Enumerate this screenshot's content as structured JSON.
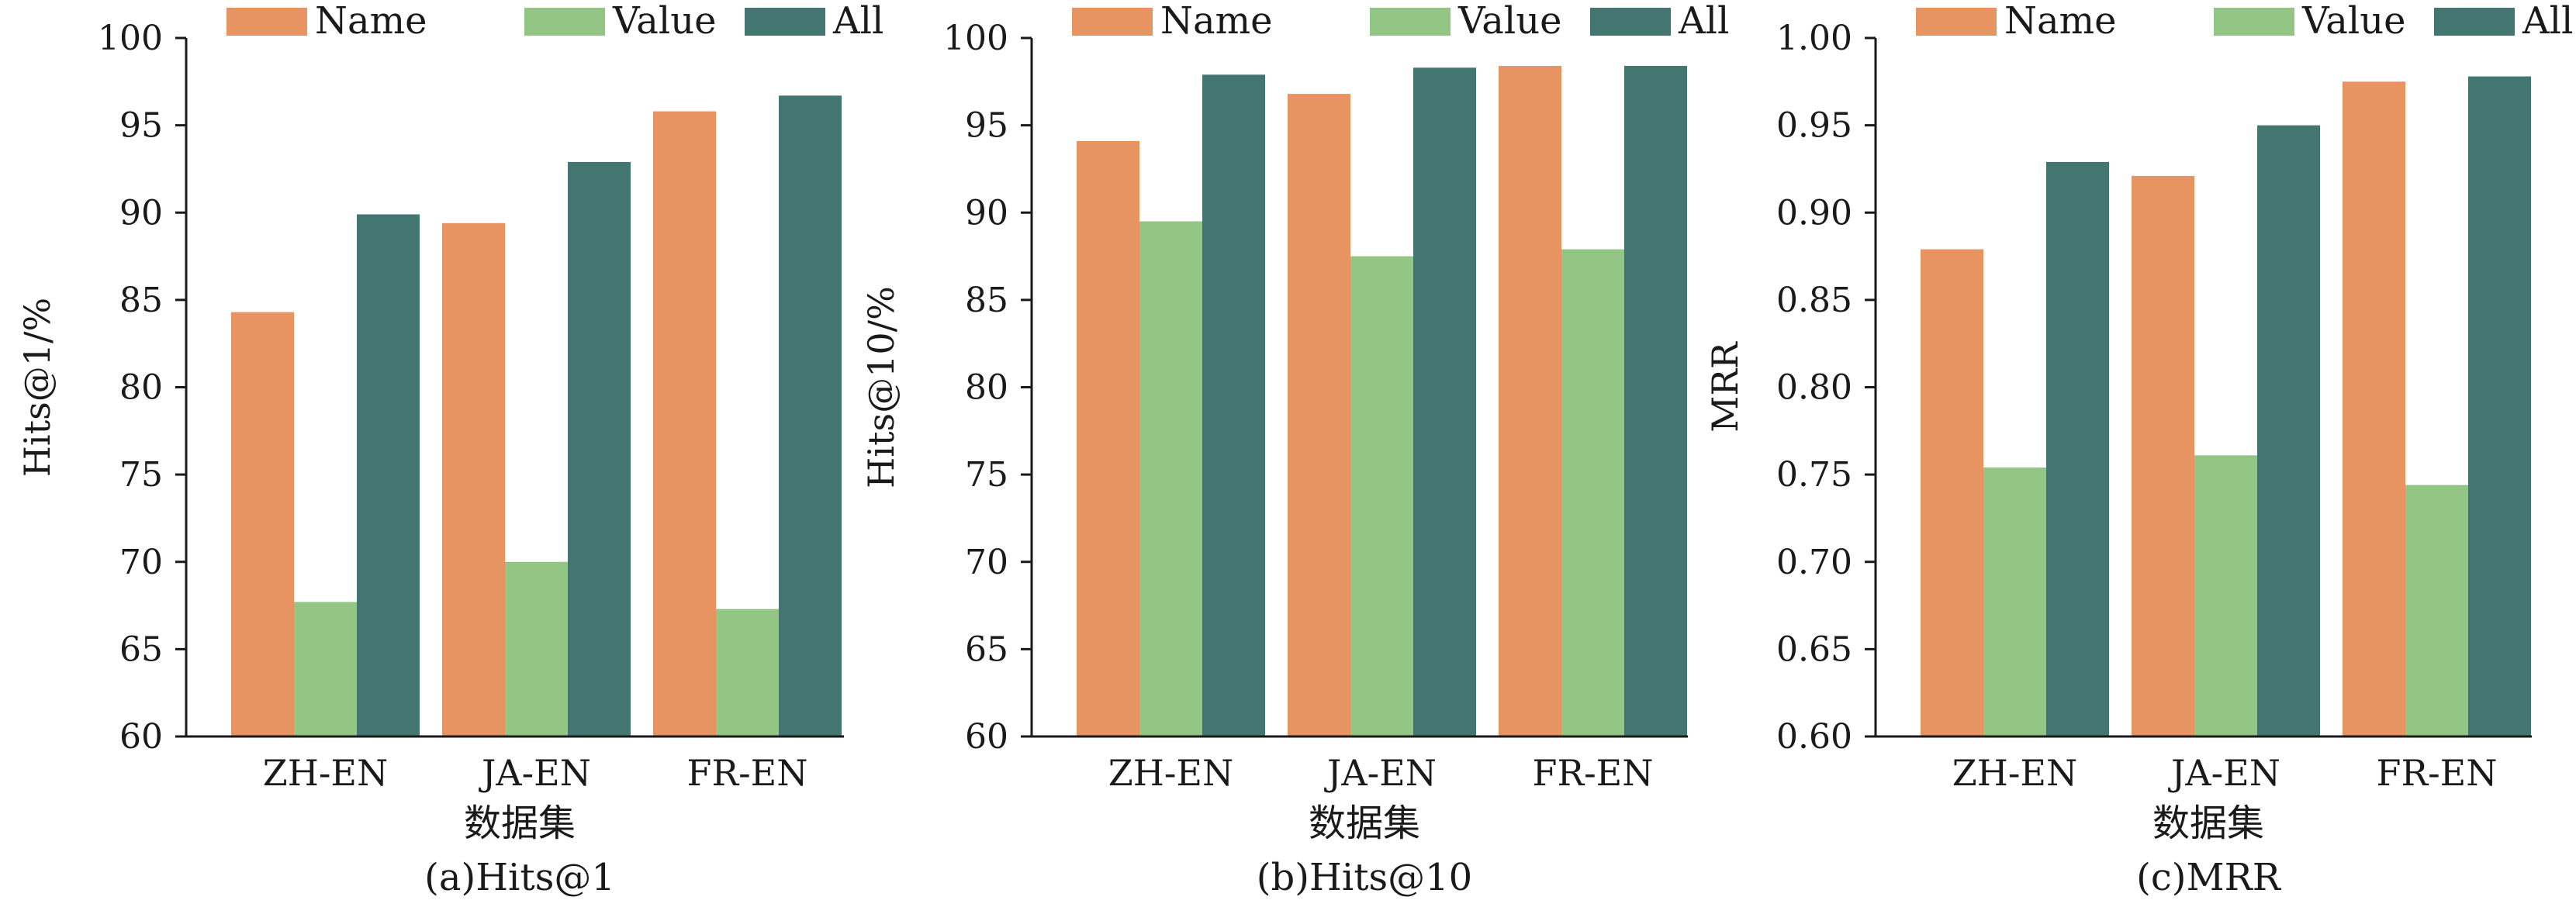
{
  "series_colors": {
    "Name": "#e89462",
    "Value": "#93c685",
    "All": "#437670"
  },
  "chart_data": [
    {
      "type": "bar",
      "title": "(a)Hits@1",
      "xlabel": "数据集",
      "ylabel": "Hits@1/%",
      "ylim": [
        60,
        100
      ],
      "yticks": [
        "60",
        "65",
        "70",
        "75",
        "80",
        "85",
        "90",
        "95",
        "100"
      ],
      "categories": [
        "ZH-EN",
        "JA-EN",
        "FR-EN"
      ],
      "legend": "top",
      "grid": false,
      "series": [
        {
          "name": "Name",
          "values": [
            84.3,
            89.4,
            95.8
          ]
        },
        {
          "name": "Value",
          "values": [
            67.7,
            70.0,
            67.3
          ]
        },
        {
          "name": "All",
          "values": [
            89.9,
            92.9,
            96.7
          ]
        }
      ]
    },
    {
      "type": "bar",
      "title": "(b)Hits@10",
      "xlabel": "数据集",
      "ylabel": "Hits@10/%",
      "ylim": [
        60,
        100
      ],
      "yticks": [
        "60",
        "65",
        "70",
        "75",
        "80",
        "85",
        "90",
        "95",
        "100"
      ],
      "categories": [
        "ZH-EN",
        "JA-EN",
        "FR-EN"
      ],
      "legend": "top",
      "grid": false,
      "series": [
        {
          "name": "Name",
          "values": [
            94.1,
            96.8,
            98.4
          ]
        },
        {
          "name": "Value",
          "values": [
            89.5,
            87.5,
            87.9
          ]
        },
        {
          "name": "All",
          "values": [
            97.9,
            98.3,
            98.4
          ]
        }
      ]
    },
    {
      "type": "bar",
      "title": "(c)MRR",
      "xlabel": "数据集",
      "ylabel": "MRR",
      "ylim": [
        0.6,
        1.0
      ],
      "yticks": [
        "0.60",
        "0.65",
        "0.70",
        "0.75",
        "0.80",
        "0.85",
        "0.90",
        "0.95",
        "1.00"
      ],
      "categories": [
        "ZH-EN",
        "JA-EN",
        "FR-EN"
      ],
      "legend": "top",
      "grid": false,
      "series": [
        {
          "name": "Name",
          "values": [
            0.879,
            0.921,
            0.975
          ]
        },
        {
          "name": "Value",
          "values": [
            0.754,
            0.761,
            0.744
          ]
        },
        {
          "name": "All",
          "values": [
            0.929,
            0.95,
            0.978
          ]
        }
      ]
    }
  ]
}
